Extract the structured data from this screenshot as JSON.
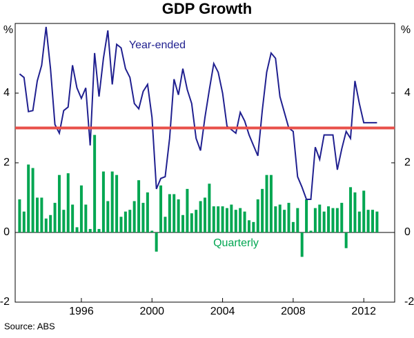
{
  "chart_data": {
    "type": "bar-line",
    "title": "GDP Growth",
    "y_unit": "%",
    "source": "Source: ABS",
    "xlim": [
      1992.25,
      2013.75
    ],
    "xticks": [
      1996,
      2000,
      2004,
      2008,
      2012
    ],
    "ylim": [
      -2,
      6
    ],
    "yticks": [
      -2,
      0,
      2,
      4
    ],
    "x": [
      1992.5,
      1992.75,
      1993,
      1993.25,
      1993.5,
      1993.75,
      1994,
      1994.25,
      1994.5,
      1994.75,
      1995,
      1995.25,
      1995.5,
      1995.75,
      1996,
      1996.25,
      1996.5,
      1996.75,
      1997,
      1997.25,
      1997.5,
      1997.75,
      1998,
      1998.25,
      1998.5,
      1998.75,
      1999,
      1999.25,
      1999.5,
      1999.75,
      2000,
      2000.25,
      2000.5,
      2000.75,
      2001,
      2001.25,
      2001.5,
      2001.75,
      2002,
      2002.25,
      2002.5,
      2002.75,
      2003,
      2003.25,
      2003.5,
      2003.75,
      2004,
      2004.25,
      2004.5,
      2004.75,
      2005,
      2005.25,
      2005.5,
      2005.75,
      2006,
      2006.25,
      2006.5,
      2006.75,
      2007,
      2007.25,
      2007.5,
      2007.75,
      2008,
      2008.25,
      2008.5,
      2008.75,
      2009,
      2009.25,
      2009.5,
      2009.75,
      2010,
      2010.25,
      2010.5,
      2010.75,
      2011,
      2011.25,
      2011.5,
      2011.75,
      2012,
      2012.25,
      2012.5,
      2012.75
    ],
    "series": [
      {
        "name": "Quarterly",
        "kind": "bar",
        "color": "#00a651",
        "values": [
          0.95,
          0.6,
          1.95,
          1.85,
          1.0,
          1.0,
          0.4,
          0.5,
          0.85,
          1.65,
          0.65,
          1.7,
          0.8,
          0.15,
          1.35,
          0.8,
          0.1,
          2.8,
          0.1,
          1.75,
          0.9,
          1.75,
          1.65,
          0.45,
          0.6,
          0.65,
          0.9,
          1.5,
          0.85,
          1.15,
          0.05,
          -0.55,
          1.35,
          0.45,
          1.1,
          1.1,
          0.95,
          0.5,
          1.25,
          0.55,
          0.65,
          0.9,
          1.0,
          1.4,
          0.75,
          0.75,
          0.75,
          0.7,
          0.8,
          0.65,
          0.7,
          0.6,
          0.35,
          0.3,
          0.95,
          1.25,
          1.65,
          1.65,
          0.75,
          0.8,
          0.65,
          0.85,
          0.3,
          0.7,
          -0.7,
          0.95,
          0.05,
          0.7,
          0.8,
          0.6,
          0.75,
          0.7,
          0.7,
          0.85,
          -0.45,
          1.3,
          1.15,
          0.6,
          1.2,
          0.65,
          0.65,
          0.6
        ]
      },
      {
        "name": "Year-ended",
        "kind": "line",
        "color": "#1f1f8f",
        "values": [
          4.55,
          4.45,
          3.47,
          3.5,
          4.35,
          4.8,
          5.9,
          4.7,
          3.1,
          2.85,
          3.5,
          3.6,
          4.8,
          4.15,
          3.85,
          4.15,
          2.5,
          5.15,
          3.9,
          5.0,
          5.8,
          4.25,
          5.4,
          5.3,
          4.7,
          4.45,
          3.7,
          3.55,
          4.05,
          4.25,
          3.3,
          1.25,
          1.55,
          1.6,
          2.7,
          4.4,
          3.95,
          4.7,
          4.1,
          3.7,
          2.7,
          2.35,
          3.3,
          4.1,
          4.85,
          4.6,
          4.0,
          3.05,
          2.95,
          2.85,
          3.45,
          3.2,
          2.8,
          2.5,
          2.2,
          3.5,
          4.6,
          5.15,
          5.0,
          3.9,
          3.45,
          3.0,
          2.9,
          1.6,
          1.3,
          0.95,
          0.95,
          2.45,
          2.1,
          2.8,
          2.8,
          2.8,
          1.8,
          2.4,
          2.9,
          2.7,
          4.35,
          3.7,
          3.15,
          3.15,
          3.15,
          3.15
        ]
      }
    ],
    "reference_line": {
      "value": 3,
      "color": "#e8504a"
    }
  }
}
